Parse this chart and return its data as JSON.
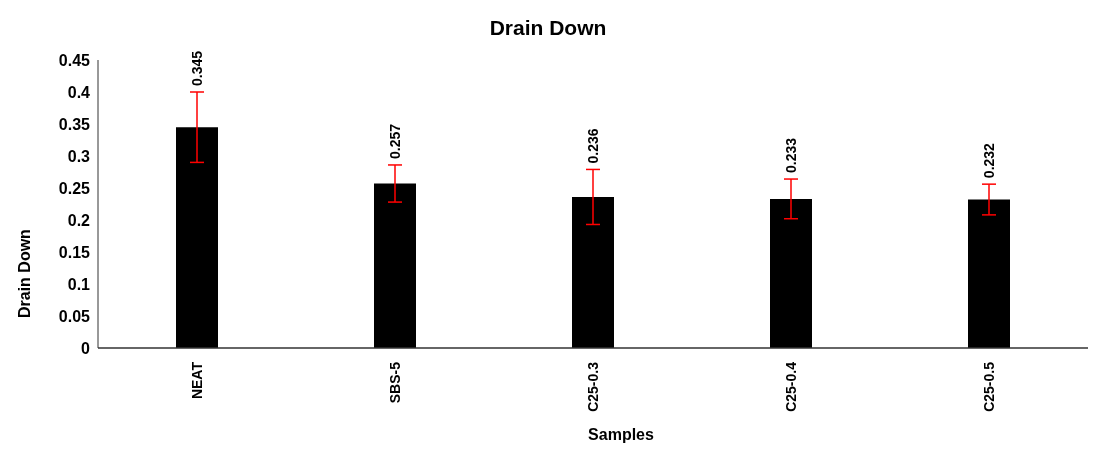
{
  "chart_data": {
    "type": "bar",
    "title": "Drain Down",
    "xlabel": "Samples",
    "ylabel": "Drain Down",
    "categories": [
      "NEAT",
      "SBS-5",
      "C25-0.3",
      "C25-0.4",
      "C25-0.5"
    ],
    "values": [
      0.345,
      0.257,
      0.236,
      0.233,
      0.232
    ],
    "errors": [
      0.055,
      0.029,
      0.043,
      0.031,
      0.024
    ],
    "color": "#000000",
    "ylim": [
      0,
      0.45
    ],
    "yticks": [
      0,
      0.05,
      0.1,
      0.15,
      0.2,
      0.25,
      0.3,
      0.35,
      0.4,
      0.45
    ],
    "data_labels": true,
    "grid": false,
    "legend": false
  }
}
